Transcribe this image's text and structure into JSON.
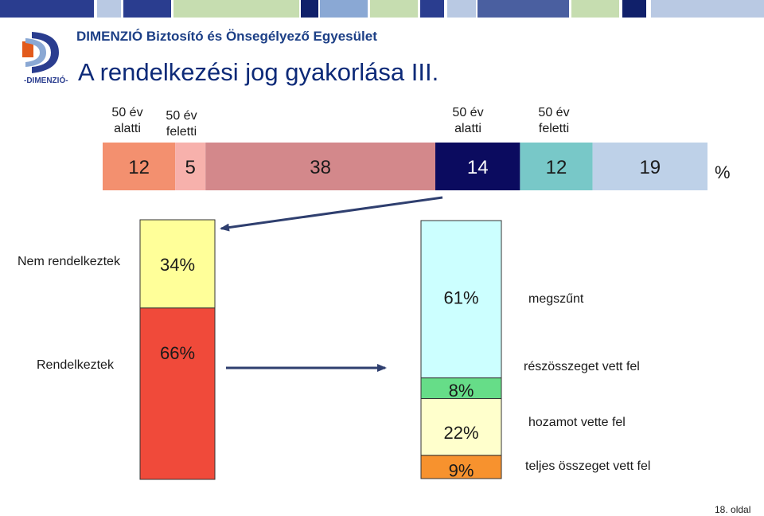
{
  "header": {
    "company": "DIMENZIÓ Biztosító és Önsegélyező Egyesület",
    "logo_text": "-DIMENZIÓ-",
    "title": "A rendelkezési jog gyakorlása III."
  },
  "colors": {
    "strip": [
      "#2a3d8f",
      "#b9c9e3",
      "#2a3d8f",
      "#c6ddb0",
      "#10206a",
      "#8aa8d4",
      "#c6ddb0",
      "#2a3d8f",
      "#b9c9e3",
      "#4a5fa0",
      "#c6ddb0",
      "#10206a",
      "#b9c9e3"
    ],
    "arrow": "#2f3f6f"
  },
  "chart_data": [
    {
      "type": "bar",
      "orientation": "horizontal-stacked",
      "unit": "%",
      "column_headers": [
        {
          "line1": "50 év",
          "line2": "alatti"
        },
        {
          "line1": "50 év",
          "line2": "feletti"
        },
        {
          "line1": "50 év",
          "line2": "alatti"
        },
        {
          "line1": "50 év",
          "line2": "feletti"
        }
      ],
      "segments": [
        {
          "value": 12,
          "label": "12",
          "color": "#f3906f",
          "text_color": "#1a1a1a"
        },
        {
          "value": 5,
          "label": "5",
          "color": "#f7b1ac",
          "text_color": "#1a1a1a"
        },
        {
          "value": 38,
          "label": "38",
          "color": "#d3888b",
          "text_color": "#1a1a1a"
        },
        {
          "value": 14,
          "label": "14",
          "color": "#0b0b5f",
          "text_color": "#ffffff"
        },
        {
          "value": 12,
          "label": "12",
          "color": "#78c8c8",
          "text_color": "#1a1a1a"
        },
        {
          "value": 19,
          "label": "19",
          "color": "#bed1e8",
          "text_color": "#1a1a1a"
        }
      ],
      "unit_label": "%"
    },
    {
      "type": "bar",
      "orientation": "vertical-stacked",
      "categories": [
        "Nem rendelkeztek",
        "Rendelkeztek"
      ],
      "segments": [
        {
          "category": "Nem rendelkeztek",
          "value": 34,
          "label": "34%",
          "color": "#ffff99"
        },
        {
          "category": "Rendelkeztek",
          "value": 66,
          "label": "66%",
          "color": "#f04a3a"
        }
      ]
    },
    {
      "type": "bar",
      "orientation": "vertical-stacked",
      "segments": [
        {
          "value": 61,
          "label": "61%",
          "description": "megszűnt",
          "color": "#ccffff"
        },
        {
          "value": 8,
          "label": "8%",
          "description": "részösszeget vett fel",
          "color": "#66dd88"
        },
        {
          "value": 22,
          "label": "22%",
          "description": "hozamot vette fel",
          "color": "#ffffcc"
        },
        {
          "value": 9,
          "label": "9%",
          "description": "teljes összeget vett fel",
          "color": "#f7922e"
        }
      ]
    }
  ],
  "footer": {
    "page": "18. oldal"
  }
}
